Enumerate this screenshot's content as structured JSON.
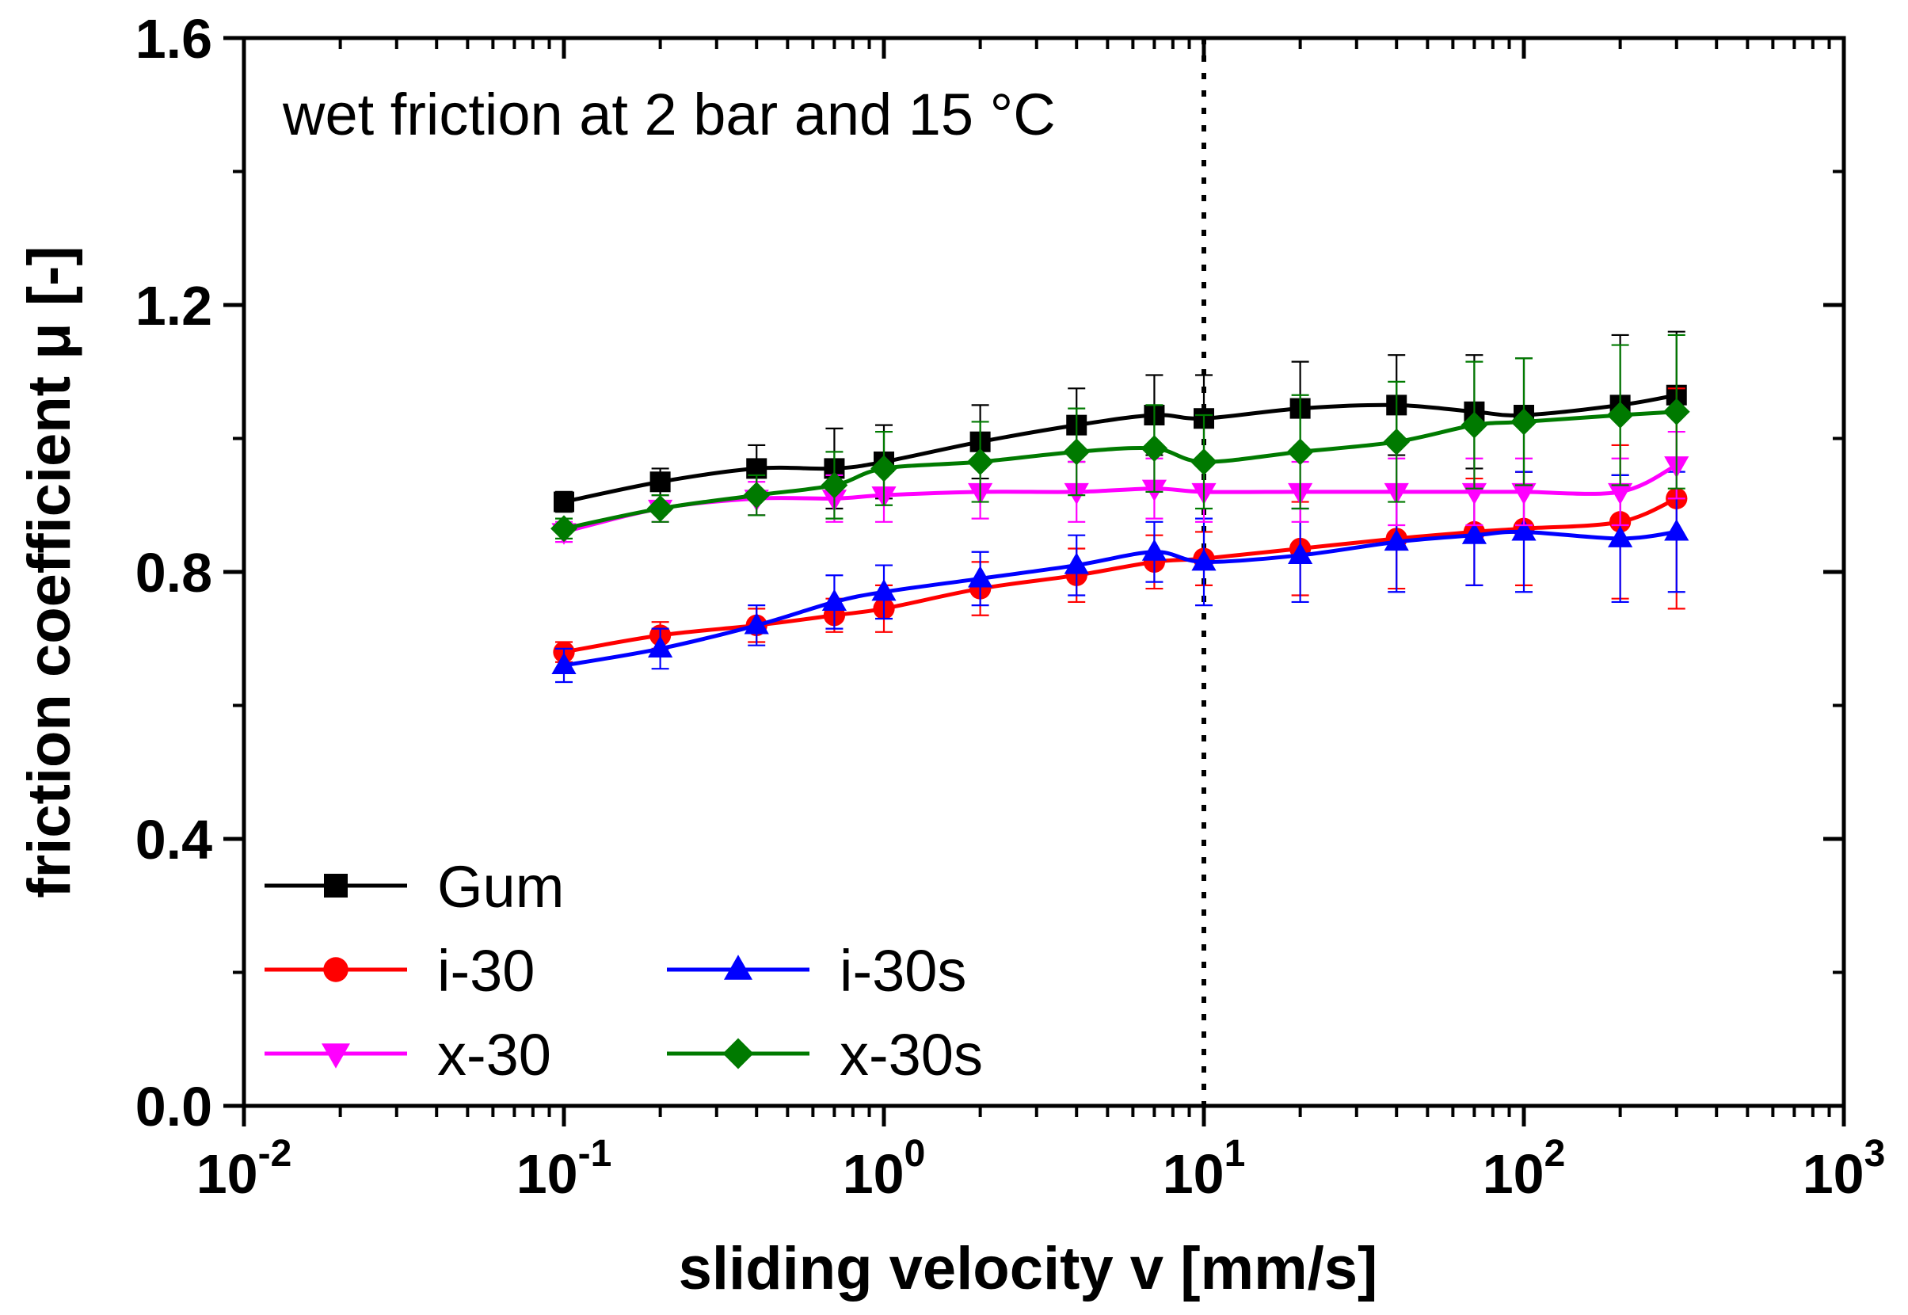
{
  "chart_data": {
    "type": "line",
    "xscale": "log",
    "xlabel": "sliding velocity v [mm/s]",
    "ylabel": "friction coefficient  μ [-]",
    "annotation": "wet friction at 2 bar and 15 °C",
    "xlim": [
      0.01,
      1000
    ],
    "ylim": [
      0.0,
      1.6
    ],
    "x_ticks": [
      {
        "base": "10",
        "exp": "-2",
        "value": 0.01
      },
      {
        "base": "10",
        "exp": "-1",
        "value": 0.1
      },
      {
        "base": "10",
        "exp": "0",
        "value": 1
      },
      {
        "base": "10",
        "exp": "1",
        "value": 10
      },
      {
        "base": "10",
        "exp": "2",
        "value": 100
      },
      {
        "base": "10",
        "exp": "3",
        "value": 1000
      }
    ],
    "y_ticks": [
      {
        "label": "0.0",
        "value": 0.0
      },
      {
        "label": "0.4",
        "value": 0.4
      },
      {
        "label": "0.8",
        "value": 0.8
      },
      {
        "label": "1.2",
        "value": 1.2
      },
      {
        "label": "1.6",
        "value": 1.6
      }
    ],
    "reference_line_x": 10,
    "x": [
      0.1,
      0.2,
      0.4,
      0.7,
      1,
      2,
      4,
      7,
      10,
      20,
      40,
      70,
      100,
      200,
      300
    ],
    "series": [
      {
        "name": "Gum",
        "color": "#000000",
        "marker": "square",
        "values": [
          0.905,
          0.935,
          0.955,
          0.955,
          0.965,
          0.995,
          1.02,
          1.035,
          1.03,
          1.045,
          1.05,
          1.04,
          1.035,
          1.05,
          1.065
        ],
        "errors": [
          0.015,
          0.02,
          0.035,
          0.06,
          0.055,
          0.055,
          0.055,
          0.06,
          0.065,
          0.07,
          0.075,
          0.085,
          0.085,
          0.105,
          0.095
        ]
      },
      {
        "name": "i-30",
        "color": "#ff0000",
        "marker": "circle",
        "values": [
          0.68,
          0.705,
          0.72,
          0.735,
          0.745,
          0.775,
          0.795,
          0.815,
          0.82,
          0.835,
          0.85,
          0.86,
          0.865,
          0.875,
          0.91
        ],
        "errors": [
          0.015,
          0.02,
          0.025,
          0.025,
          0.035,
          0.04,
          0.04,
          0.04,
          0.04,
          0.07,
          0.075,
          0.08,
          0.085,
          0.115,
          0.165
        ]
      },
      {
        "name": "i-30s",
        "color": "#0000ff",
        "marker": "triangle-up",
        "values": [
          0.66,
          0.685,
          0.72,
          0.755,
          0.77,
          0.79,
          0.81,
          0.83,
          0.815,
          0.825,
          0.845,
          0.855,
          0.86,
          0.85,
          0.86
        ],
        "errors": [
          0.025,
          0.03,
          0.03,
          0.04,
          0.04,
          0.04,
          0.045,
          0.045,
          0.065,
          0.07,
          0.075,
          0.075,
          0.09,
          0.095,
          0.09
        ]
      },
      {
        "name": "x-30",
        "color": "#ff00ff",
        "marker": "triangle-down",
        "values": [
          0.86,
          0.895,
          0.91,
          0.91,
          0.915,
          0.92,
          0.92,
          0.925,
          0.92,
          0.92,
          0.92,
          0.92,
          0.92,
          0.92,
          0.96
        ],
        "errors": [
          0.015,
          0.02,
          0.025,
          0.035,
          0.04,
          0.04,
          0.045,
          0.045,
          0.045,
          0.045,
          0.05,
          0.05,
          0.05,
          0.05,
          0.05
        ]
      },
      {
        "name": "x-30s",
        "color": "#007a00",
        "marker": "diamond",
        "values": [
          0.865,
          0.895,
          0.915,
          0.93,
          0.955,
          0.965,
          0.98,
          0.985,
          0.965,
          0.98,
          0.995,
          1.02,
          1.025,
          1.035,
          1.04
        ],
        "errors": [
          0.015,
          0.02,
          0.03,
          0.05,
          0.055,
          0.06,
          0.065,
          0.065,
          0.07,
          0.085,
          0.09,
          0.095,
          0.095,
          0.105,
          0.115
        ]
      }
    ],
    "legend": {
      "placement": "bottom-left",
      "columns": 2
    }
  }
}
